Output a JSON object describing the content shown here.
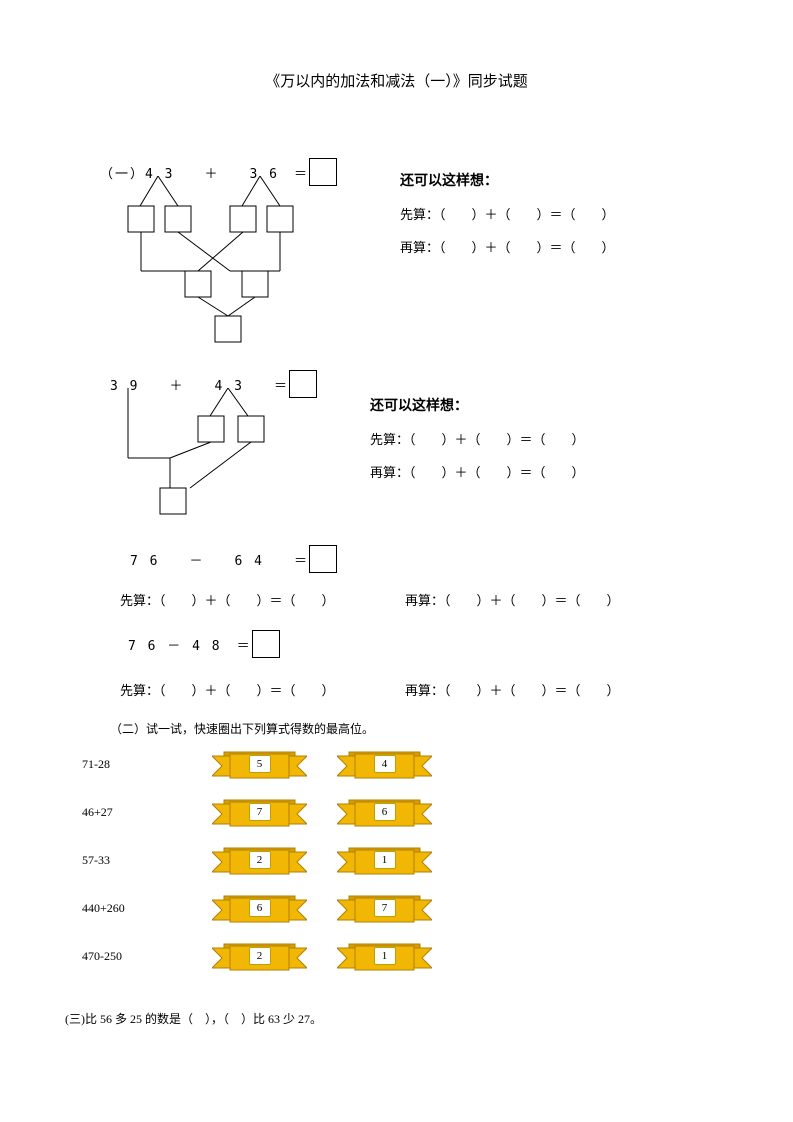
{
  "title": "《万以内的加法和减法（一）》同步试题",
  "p1": {
    "label": "（一）4 3　　＋　　3 6　＝",
    "think_hdr": "还可以这样想：",
    "first": "先算：（　　）＋（　　）＝（　　）",
    "second": "再算：（　　）＋（　　）＝（　　）"
  },
  "p2": {
    "label": "3 9　　＋　　4 3　　＝",
    "think_hdr": "还可以这样想：",
    "first": "先算：（　　）＋（　　）＝（　　）",
    "second": "再算：（　　）＋（　　）＝（　　）"
  },
  "p3": {
    "label": "7 6　　－　　6 4　　＝",
    "first": "先算：（　　）＋（　　）＝（　　）",
    "second": "再算：（　　）＋（　　）＝（　　）"
  },
  "p4": {
    "label": "7 6 － 4 8　＝",
    "first": "先算：（　　）＋（　　）＝（　　）",
    "second": "再算：（　　）＋（　　）＝（　　）"
  },
  "sec2": {
    "header": "（二）试一试，快速圈出下列算式得数的最高位。",
    "rows": [
      {
        "label": "71-28",
        "a": "5",
        "b": "4"
      },
      {
        "label": "46+27",
        "a": "7",
        "b": "6"
      },
      {
        "label": "57-33",
        "a": "2",
        "b": "1"
      },
      {
        "label": "440+260",
        "a": "6",
        "b": "7"
      },
      {
        "label": "470-250",
        "a": "2",
        "b": "1"
      }
    ]
  },
  "sec3": "(三)比 56 多 25 的数是（　），（　）比 63 少 27。",
  "ribbon_style": {
    "fill": "#f2b705",
    "stroke": "#b08000",
    "top_fill": "#d89e00"
  }
}
